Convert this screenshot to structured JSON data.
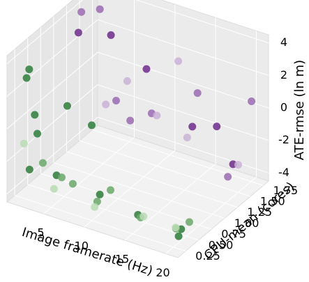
{
  "chart_data": {
    "type": "scatter3d",
    "xlabel": "Image framerate (Hz)",
    "ylabel": "CPU-mean (cores)",
    "zlabel": "ATE-rmse (ln m)",
    "xlim": [
      0.5,
      21.5
    ],
    "ylim": [
      0.1,
      1.85
    ],
    "zlim": [
      -4.5,
      4.5
    ],
    "xticks": [
      5,
      10,
      15,
      20
    ],
    "yticks": [
      0.25,
      {
        "value": 0.5,
        "label": "0.50"
      },
      0.75,
      {
        "value": 1.0,
        "label": "1.00"
      },
      1.25,
      {
        "value": 1.5,
        "label": "1.50"
      },
      1.75
    ],
    "zticks": [
      -4,
      -2,
      0,
      2,
      4
    ],
    "grid": true,
    "x": [
      1,
      1,
      1,
      2,
      2,
      2,
      3,
      5,
      5,
      5,
      6,
      7,
      10,
      10,
      10,
      11,
      9,
      15,
      15,
      16,
      20,
      20,
      20,
      19,
      21,
      1,
      2,
      3,
      5,
      5,
      5,
      7,
      8,
      10,
      10,
      10,
      12,
      15,
      15,
      15,
      18,
      20,
      20,
      20,
      21
    ],
    "y": [
      0.45,
      0.4,
      0.35,
      0.4,
      0.45,
      0.3,
      0.4,
      0.35,
      0.45,
      0.3,
      0.4,
      0.35,
      0.4,
      0.35,
      0.3,
      0.45,
      0.4,
      0.35,
      0.4,
      0.3,
      0.4,
      0.35,
      0.3,
      0.45,
      0.4,
      1.4,
      1.3,
      1.5,
      1.4,
      1.3,
      1.5,
      1.4,
      1.3,
      1.4,
      1.5,
      1.3,
      1.6,
      1.4,
      1.3,
      1.5,
      1.4,
      1.4,
      1.5,
      1.3,
      1.6
    ],
    "z": [
      2.8,
      2.4,
      -1.5,
      0.3,
      -1.0,
      -2.8,
      -2.5,
      -2.8,
      -3.2,
      -3.5,
      1.5,
      -3.0,
      -3.3,
      -3.6,
      -3.8,
      -3.0,
      0.8,
      -3.6,
      -3.9,
      -3.4,
      -3.8,
      -4.1,
      -3.5,
      -4.0,
      -3.2,
      2.5,
      4.2,
      4.0,
      3.0,
      -1.0,
      -1.3,
      0.5,
      -1.5,
      -1.0,
      -1.4,
      2.0,
      2.0,
      -1.0,
      -1.4,
      0.8,
      -0.5,
      -2.5,
      -2.8,
      -3.0,
      1.0
    ],
    "colors": [
      "#2d7d3a",
      "#2d7d3a",
      "#b9dcb3",
      "#2d7d3a",
      "#2d7d3a",
      "#2d7d3a",
      "#6aa86a",
      "#2d7d3a",
      "#6aa86a",
      "#b9dcb3",
      "#2d7d3a",
      "#6aa86a",
      "#2d7d3a",
      "#6aa86a",
      "#b9dcb3",
      "#6aa86a",
      "#2d7d3a",
      "#2d7d3a",
      "#6aa86a",
      "#b9dcb3",
      "#2d7d3a",
      "#2d7d3a",
      "#6aa86a",
      "#b9dcb3",
      "#6aa86a",
      "#6e2c8c",
      "#9a6bb0",
      "#9a6bb0",
      "#6e2c8c",
      "#c9b2d6",
      "#9a6bb0",
      "#c9b2d6",
      "#9a6bb0",
      "#9a6bb0",
      "#c9b2d6",
      "#6e2c8c",
      "#c9b2d6",
      "#6e2c8c",
      "#c9b2d6",
      "#9a6bb0",
      "#6e2c8c",
      "#6e2c8c",
      "#c9b2d6",
      "#9a6bb0",
      "#9a6bb0"
    ]
  }
}
